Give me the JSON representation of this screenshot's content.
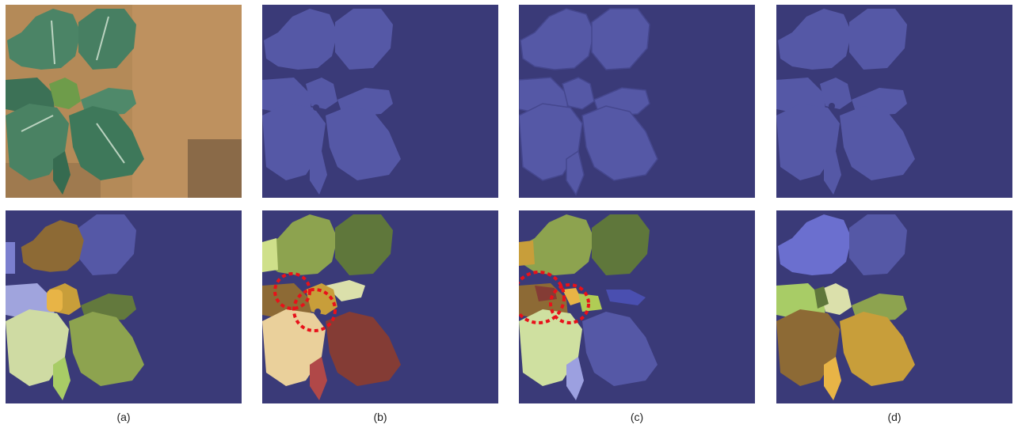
{
  "figure": {
    "captions": [
      "(a)",
      "(b)",
      "(c)",
      "(d)"
    ]
  },
  "colors": {
    "background": "#3a3a78",
    "plant_foreground": "#5558a6",
    "soil": "#b48a58",
    "annotation": "#e8111a"
  },
  "panels": [
    {
      "row": 1,
      "col": "a",
      "content": "photo"
    },
    {
      "row": 1,
      "col": "b",
      "content": "semantic-mask"
    },
    {
      "row": 1,
      "col": "c",
      "content": "semantic-mask"
    },
    {
      "row": 1,
      "col": "d",
      "content": "semantic-mask"
    },
    {
      "row": 2,
      "col": "a",
      "content": "instance-mask"
    },
    {
      "row": 2,
      "col": "b",
      "content": "instance-mask",
      "highlights": 2
    },
    {
      "row": 2,
      "col": "c",
      "content": "instance-mask",
      "highlights": 2
    },
    {
      "row": 2,
      "col": "d",
      "content": "instance-mask"
    }
  ]
}
